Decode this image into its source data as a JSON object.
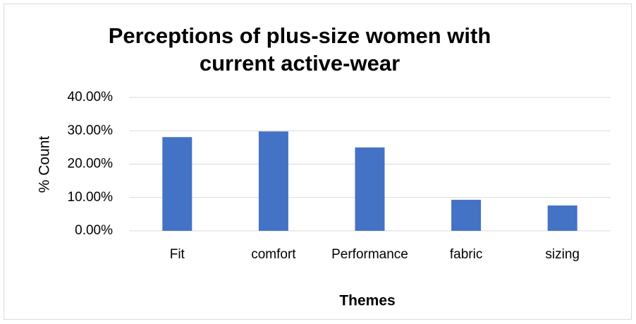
{
  "chart_data": {
    "type": "bar",
    "title": [
      "Perceptions of plus-size women with",
      "current active-wear"
    ],
    "x_label": "Themes",
    "y_label": "% Count",
    "categories": [
      "Fit",
      "comfort",
      "Performance",
      "fabric",
      "sizing"
    ],
    "values": [
      28.1,
      29.8,
      25.0,
      9.3,
      7.6
    ],
    "color": "#4472c4",
    "ylim": [
      0,
      40
    ],
    "yticks": [
      {
        "value": 0,
        "label": "0.00%"
      },
      {
        "value": 10,
        "label": "10.00%"
      },
      {
        "value": 20,
        "label": "20.00%"
      },
      {
        "value": 30,
        "label": "30.00%"
      },
      {
        "value": 40,
        "label": "40.00%"
      }
    ],
    "grid": true
  }
}
